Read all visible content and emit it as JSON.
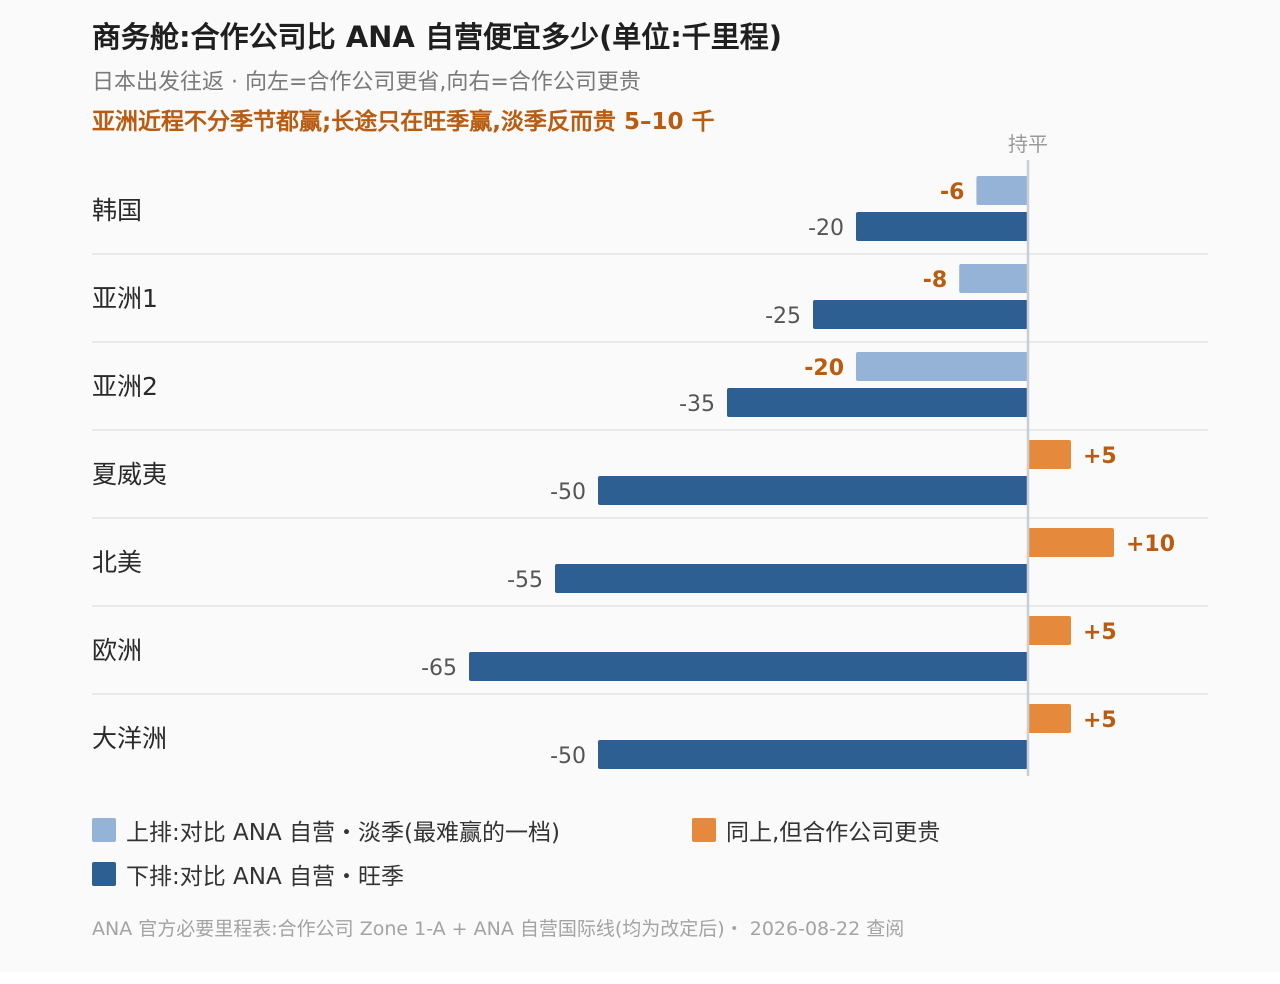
{
  "header": {
    "title": "商务舱:合作公司比 ANA 自营便宜多少(单位:千里程)",
    "subtitle": "日本出发往返 · 向左=合作公司更省,向右=合作公司更贵",
    "highlight": "亚洲近程不分季节都赢;长途只在旺季赢,淡季反而贵 5–10 千"
  },
  "legend": {
    "items": [
      {
        "label": "上排:对比 ANA 自营・淡季(最难赢的一档)",
        "color": "#95b3d7"
      },
      {
        "label": "同上,但合作公司更贵",
        "color": "#e58a3c"
      },
      {
        "label": "下排:对比 ANA 自营・旺季",
        "color": "#2d5f93"
      }
    ]
  },
  "footer": {
    "source": "ANA 官方必要里程表:合作公司 Zone 1-A + ANA 自营国际线(均为改定后)・ 2026-08-22 查阅"
  },
  "chart_data": {
    "type": "bar",
    "orientation": "horizontal",
    "zero_line_label": "持平",
    "categories": [
      "韩国",
      "亚洲1",
      "亚洲2",
      "夏威夷",
      "北美",
      "欧洲",
      "大洋洲"
    ],
    "series": [
      {
        "name": "上排:对比 ANA 自营・淡季(最难赢的一档)",
        "values": [
          -6,
          -8,
          -20,
          5,
          10,
          5,
          5
        ],
        "labels": [
          "-6",
          "-8",
          "-20",
          "+5",
          "+10",
          "+5",
          "+5"
        ]
      },
      {
        "name": "下排:对比 ANA 自营・旺季",
        "values": [
          -20,
          -25,
          -35,
          -50,
          -55,
          -65,
          -50
        ],
        "labels": [
          "-20",
          "-25",
          "-35",
          "-50",
          "-55",
          "-65",
          "-50"
        ]
      }
    ],
    "colors": {
      "offpeak_negative": "#95b3d7",
      "offpeak_positive": "#e58a3c",
      "peak": "#2d5f93",
      "label_orange": "#b85c12",
      "label_gray": "#555555",
      "zero_line": "#c9ced6",
      "separator": "#e3e3e3"
    },
    "xlim": [
      -65,
      13
    ]
  }
}
